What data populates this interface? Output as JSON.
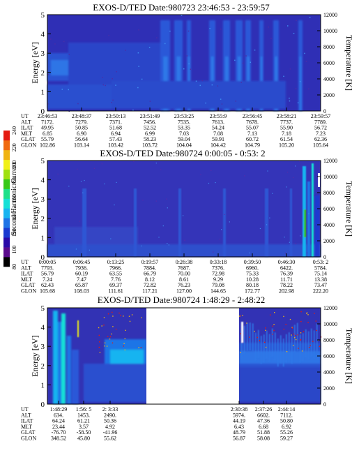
{
  "colorbar": {
    "title": "Second Harmonic Current",
    "ticks": [
      "80",
      "100",
      "120",
      "140",
      "160",
      "180",
      "200",
      "220",
      "240"
    ],
    "colors": [
      "#000000",
      "#5a0a8c",
      "#2a0aa8",
      "#1a3ad0",
      "#1e74e6",
      "#18b4f0",
      "#16e0d6",
      "#1ee08a",
      "#36c818",
      "#a0e010",
      "#f0f018",
      "#f0b412",
      "#f06a10",
      "#e41a10"
    ]
  },
  "chart_data": [
    {
      "type": "heatmap",
      "title": "EXOS-D/TED   Date:980723  23:46:53 - 23:59:57",
      "ylabel": "Energy [eV]",
      "y2label": "Temperature [K]",
      "ylim": [
        0,
        5
      ],
      "y2lim": [
        0,
        12000
      ],
      "yticks": [
        "0",
        "1",
        "2",
        "3",
        "4",
        "5"
      ],
      "y2ticks": [
        "0",
        "2000",
        "4000",
        "6000",
        "8000",
        "10000",
        "12000"
      ],
      "aux_rows": [
        {
          "label": "UT",
          "values": [
            "23:46:53",
            "23:48:37",
            "23:50:13",
            "23:51:49",
            "23:53:25",
            "23:55:9",
            "23:56:45",
            "23:58:21",
            "23:59:57"
          ]
        },
        {
          "label": "ALT",
          "values": [
            "7172.",
            "7279.",
            "7371.",
            "7456.",
            "7535.",
            "7613.",
            "7678.",
            "7737.",
            "7789."
          ]
        },
        {
          "label": "ILAT",
          "values": [
            "49.95",
            "50.85",
            "51.68",
            "52.52",
            "53.35",
            "54.24",
            "55.07",
            "55.90",
            "56.72"
          ]
        },
        {
          "label": "MLT",
          "values": [
            "6.85",
            "6.90",
            "6.94",
            "6.99",
            "7.03",
            "7.08",
            "7.13",
            "7.18",
            "7.23"
          ]
        },
        {
          "label": "GLAT",
          "values": [
            "55.79",
            "56.64",
            "57.43",
            "58.23",
            "59.04",
            "59.91",
            "60.72",
            "61.54",
            "62.36"
          ]
        },
        {
          "label": "GLON",
          "values": [
            "102.86",
            "103.14",
            "103.42",
            "103.72",
            "104.04",
            "104.42",
            "104.79",
            "105.20",
            "105.64"
          ]
        }
      ]
    },
    {
      "type": "heatmap",
      "title": "EXOS-D/TED   Date:980724   0:00:05 - 0:53: 2",
      "ylabel": "Energy [eV]",
      "y2label": "Temperature [K]",
      "ylim": [
        0,
        5
      ],
      "y2lim": [
        0,
        12000
      ],
      "yticks": [
        "0",
        "1",
        "2",
        "3",
        "4",
        "5"
      ],
      "y2ticks": [
        "0",
        "2000",
        "4000",
        "6000",
        "8000",
        "10000",
        "12000"
      ],
      "aux_rows": [
        {
          "label": "UT",
          "values": [
            "0:00:05",
            "0:06:45",
            "0:13:25",
            "0:19:57",
            "0:26:38",
            "0:33:18",
            "0:39:50",
            "0:46:30",
            "0:53: 2"
          ]
        },
        {
          "label": "ALT",
          "values": [
            "7793.",
            "7936.",
            "7966.",
            "7884.",
            "7687.",
            "7376.",
            "6960.",
            "6422.",
            "5784."
          ]
        },
        {
          "label": "ILAT",
          "values": [
            "56.79",
            "60.19",
            "63.55",
            "66.79",
            "70.00",
            "72.98",
            "75.33",
            "76.39",
            "75.14"
          ]
        },
        {
          "label": "MLT",
          "values": [
            "7.24",
            "7.47",
            "7.76",
            "8.12",
            "8.61",
            "9.29",
            "10.28",
            "11.71",
            "13.38"
          ]
        },
        {
          "label": "GLAT",
          "values": [
            "62.43",
            "65.87",
            "69.37",
            "72.82",
            "76.23",
            "79.08",
            "80.18",
            "78.22",
            "73.47"
          ]
        },
        {
          "label": "GLON",
          "values": [
            "105.68",
            "108.03",
            "111.61",
            "117.21",
            "127.00",
            "144.65",
            "172.77",
            "202.98",
            "222.20"
          ]
        }
      ]
    },
    {
      "type": "heatmap",
      "title": "EXOS-D/TED   Date:980724   1:48:29 - 2:48:22",
      "ylabel": "Energy [eV]",
      "y2label": "Temperature [K]",
      "ylim": [
        0,
        5
      ],
      "y2lim": [
        0,
        12000
      ],
      "yticks": [
        "0",
        "1",
        "2",
        "3",
        "4",
        "5"
      ],
      "y2ticks": [
        "0",
        "2000",
        "4000",
        "6000",
        "8000",
        "10000",
        "12000"
      ],
      "aux_rows": [
        {
          "label": "UT",
          "values": [
            "1:48:29",
            "1:56: 5",
            "2: 3:33",
            "2:30:38",
            "2:37:26",
            "2:44:14"
          ]
        },
        {
          "label": "ALT",
          "values": [
            "634.",
            "1453.",
            "2490.",
            "5974.",
            "6602.",
            "7112."
          ]
        },
        {
          "label": "ILAT",
          "values": [
            "64.24",
            "61.21",
            "50.36",
            "44.19",
            "47.36",
            "50.80"
          ]
        },
        {
          "label": "MLT",
          "values": [
            "23.44",
            "3.57",
            "4.92",
            "6.43",
            "6.68",
            "6.92"
          ]
        },
        {
          "label": "GLAT",
          "values": [
            "-76.70",
            "-58.50",
            "-41.96",
            "48.79",
            "51.88",
            "55.26"
          ]
        },
        {
          "label": "GLON",
          "values": [
            "348.52",
            "45.80",
            "55.62",
            "56.87",
            "58.08",
            "59.27"
          ]
        }
      ]
    }
  ]
}
